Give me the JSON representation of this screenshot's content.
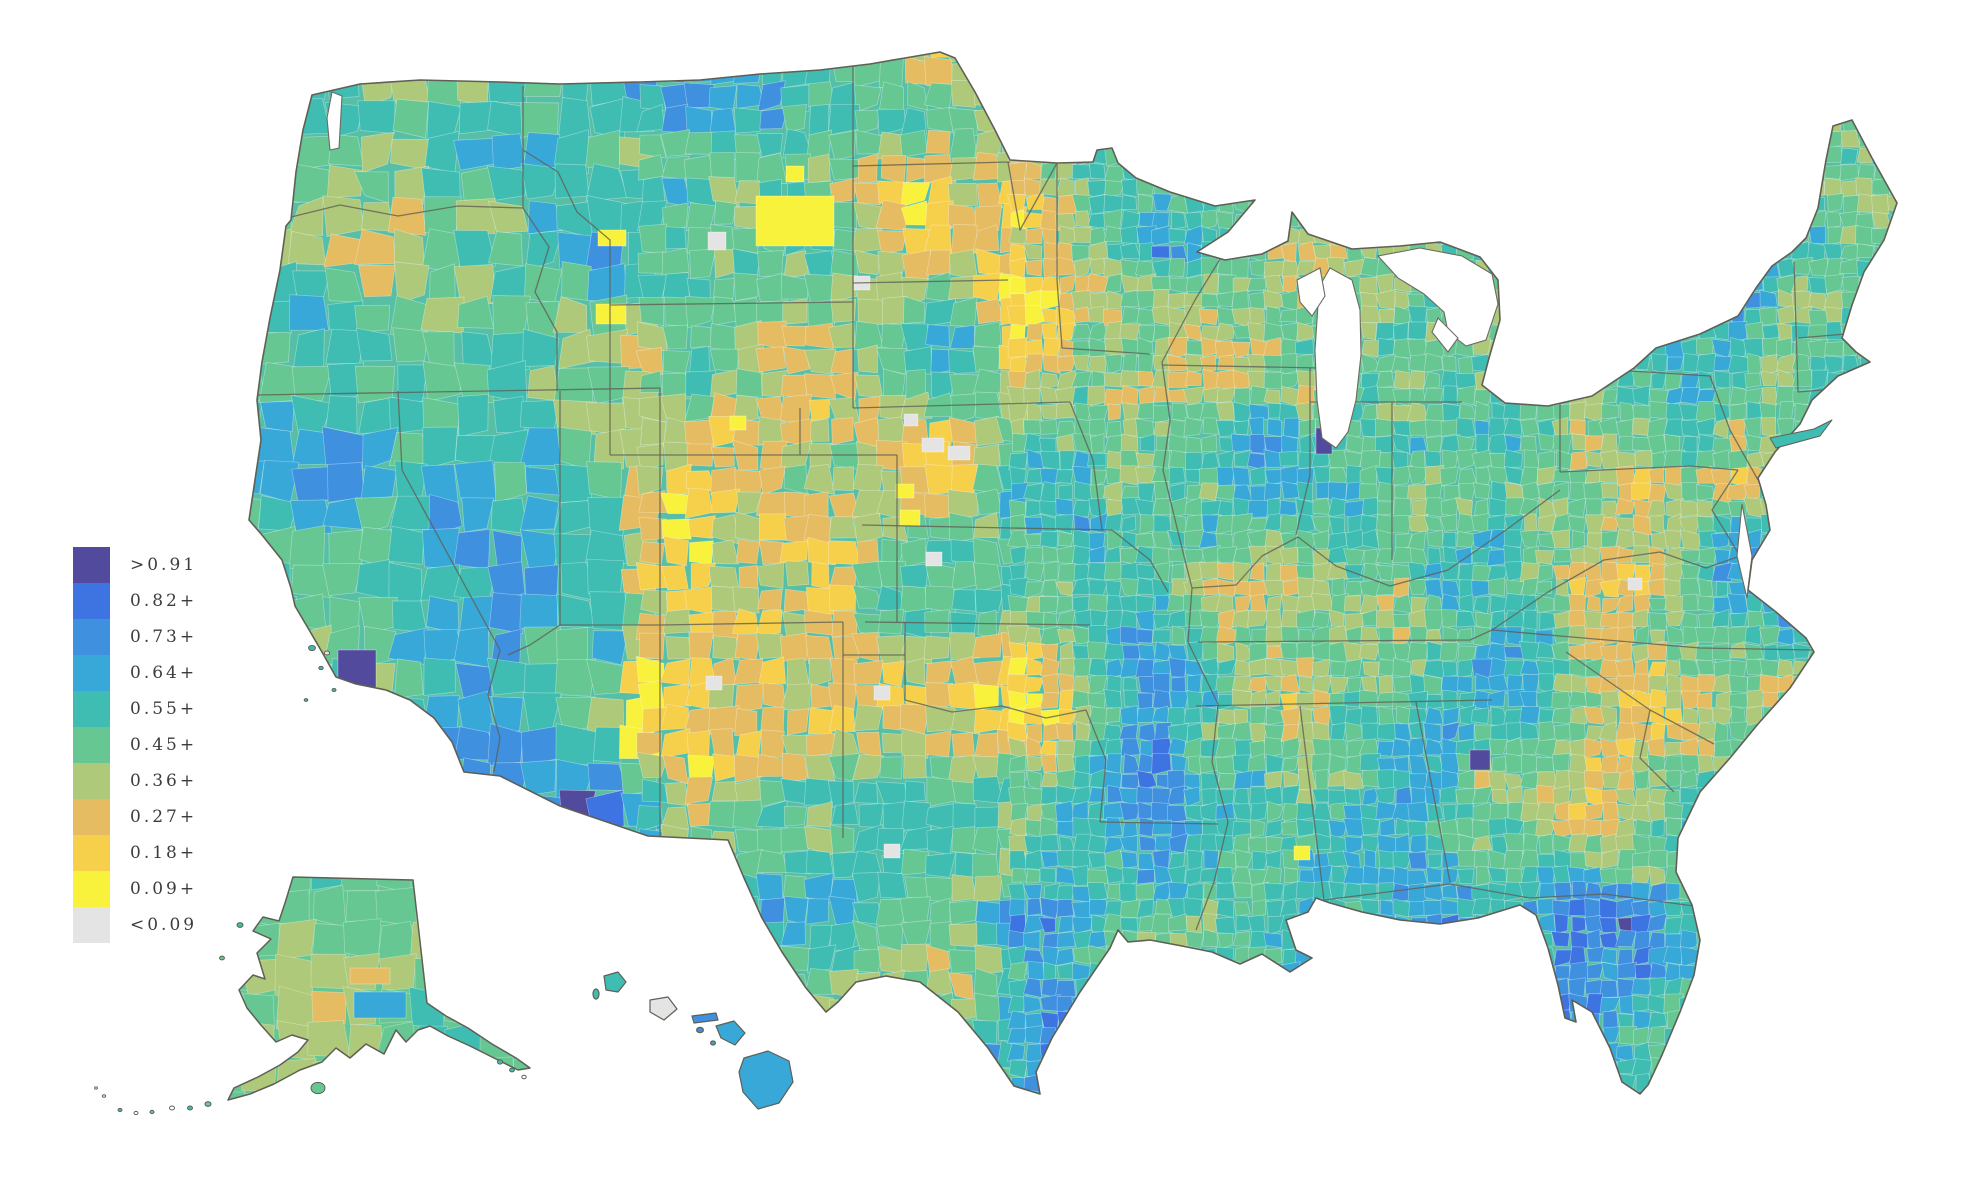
{
  "figure": {
    "background": "#ffffff",
    "kind": "US county choropleth map"
  },
  "legend": {
    "position": "middle-left",
    "bins": [
      {
        "label": ">0.91",
        "color": "#514a9d"
      },
      {
        "label": "0.82+",
        "color": "#3e74e2"
      },
      {
        "label": "0.73+",
        "color": "#3f90df"
      },
      {
        "label": "0.64+",
        "color": "#37a8d8"
      },
      {
        "label": "0.55+",
        "color": "#3fbdb3"
      },
      {
        "label": "0.45+",
        "color": "#66c793"
      },
      {
        "label": "0.36+",
        "color": "#afc97a"
      },
      {
        "label": "0.27+",
        "color": "#e5bc62"
      },
      {
        "label": "0.18+",
        "color": "#f6cf4b"
      },
      {
        "label": "0.09+",
        "color": "#f8f23c"
      },
      {
        "label": "<0.09",
        "color": "#e4e4e4"
      }
    ]
  },
  "chart_data": {
    "type": "choropleth",
    "area": "United States counties (contiguous US, Alaska and Hawaii insets)",
    "bins": [
      ">0.91",
      "0.82+",
      "0.73+",
      "0.64+",
      "0.55+",
      "0.45+",
      "0.36+",
      "0.27+",
      "0.18+",
      "0.09+",
      "<0.09"
    ],
    "bin_colors": [
      "#514a9d",
      "#3e74e2",
      "#3f90df",
      "#37a8d8",
      "#3fbdb3",
      "#66c793",
      "#afc97a",
      "#e5bc62",
      "#f6cf4b",
      "#f8f23c",
      "#e4e4e4"
    ],
    "legend_position": "middle-left",
    "grid": false,
    "title": "",
    "notable_regions": {
      "dark_purple_counties": [
        "southern California (Los Angeles area)",
        "Lake Michigan south-west shore (Chicago area)",
        "northern Georgia (Atlanta area)"
      ],
      "yellow_low_clusters": [
        "Montana",
        "Dakotas",
        "Kansas/Nebraska"
      ],
      "blue_high_clusters": [
        "Florida peninsula",
        "Southwest (Arizona/Nevada)",
        "Northeast metro areas"
      ]
    }
  }
}
